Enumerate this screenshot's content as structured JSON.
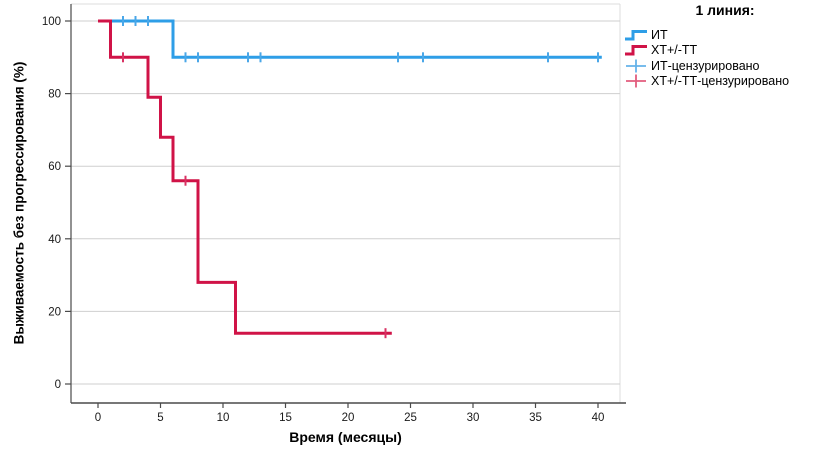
{
  "figure": {
    "background": "#ffffff"
  },
  "legend": {
    "title": "1 линия:",
    "items": [
      {
        "label": "ИТ",
        "symbol": "step",
        "color": "#2e9ee7"
      },
      {
        "label": "ХТ+/-ТТ",
        "symbol": "step",
        "color": "#d01347"
      },
      {
        "label": "ИТ-цензурировано",
        "symbol": "plus",
        "color": "#64b2e9"
      },
      {
        "label": "ХТ+/-ТТ-цензурировано",
        "symbol": "plus",
        "color": "#e25c7d"
      }
    ]
  },
  "chart_data": {
    "type": "line",
    "subtype": "kaplan-meier-step",
    "title": "",
    "xlabel": "Время (месяцы)",
    "ylabel": "Выживаемость без прогрессирования (%)",
    "xlim": [
      0,
      40
    ],
    "ylim": [
      0,
      100
    ],
    "xticks": [
      0,
      5,
      10,
      15,
      20,
      25,
      30,
      35,
      40
    ],
    "yticks": [
      0,
      20,
      40,
      60,
      80,
      100
    ],
    "grid": "horizontal-only",
    "legend_position": "top-right",
    "colors": {
      "grid": "#cfcfcf",
      "frame": "#dcdcdc",
      "spine": "#4a4a4a",
      "tick_label": "#1a1a1a"
    },
    "series": [
      {
        "name": "ИТ",
        "color": "#2e9ee7",
        "censor_color": "#4aa7e8",
        "step_points": [
          [
            0,
            100
          ],
          [
            6,
            100
          ],
          [
            6,
            90
          ],
          [
            40.3,
            90
          ]
        ],
        "censored": [
          [
            2,
            100
          ],
          [
            3,
            100
          ],
          [
            4,
            100
          ],
          [
            7,
            90
          ],
          [
            8,
            90
          ],
          [
            12,
            90
          ],
          [
            13,
            90
          ],
          [
            24,
            90
          ],
          [
            26,
            90
          ],
          [
            36,
            90
          ],
          [
            40,
            90
          ]
        ]
      },
      {
        "name": "ХТ+/-ТТ",
        "color": "#d01347",
        "censor_color": "#d83263",
        "step_points": [
          [
            0,
            100
          ],
          [
            1,
            100
          ],
          [
            1,
            90
          ],
          [
            4,
            90
          ],
          [
            4,
            79
          ],
          [
            5,
            79
          ],
          [
            5,
            68
          ],
          [
            6,
            68
          ],
          [
            6,
            56
          ],
          [
            8,
            56
          ],
          [
            8,
            28
          ],
          [
            11,
            28
          ],
          [
            11,
            14
          ],
          [
            23.5,
            14
          ]
        ],
        "censored": [
          [
            2,
            90
          ],
          [
            7,
            56
          ],
          [
            23,
            14
          ]
        ]
      }
    ]
  }
}
